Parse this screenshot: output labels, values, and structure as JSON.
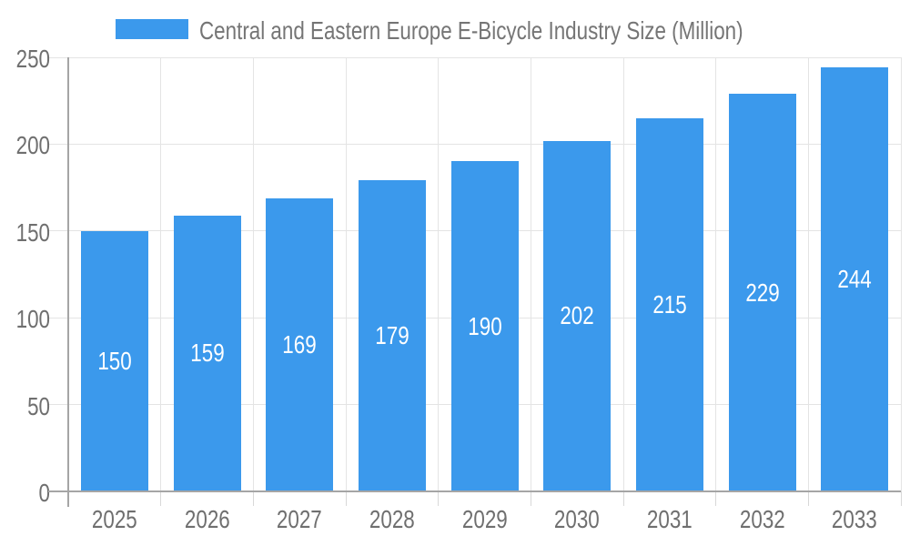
{
  "legend": {
    "label": "Central and Eastern Europe E-Bicycle Industry Size (Million)"
  },
  "colors": {
    "bar": "#3B99EC",
    "grid_line": "#E4E4E4",
    "tick_line": "#D8D8D8",
    "axis_line": "#A5A5A5",
    "axis_text": "#6F6F6F",
    "title_text": "#757575",
    "bar_label_text": "#FFFFFF",
    "background": "#FFFFFF"
  },
  "chart_data": {
    "type": "bar",
    "title": "Central and Eastern Europe E-Bicycle Industry Size (Million)",
    "categories": [
      "2025",
      "2026",
      "2027",
      "2028",
      "2029",
      "2030",
      "2031",
      "2032",
      "2033"
    ],
    "values": [
      150,
      159,
      169,
      179,
      190,
      202,
      215,
      229,
      244
    ],
    "xlabel": "",
    "ylabel": "",
    "ylim": [
      0,
      250
    ],
    "yticks": [
      0,
      50,
      100,
      150,
      200,
      250
    ],
    "grid": true,
    "legend_position": "top",
    "value_labels_position": "inside-center",
    "bar_color": "#3B99EC"
  }
}
